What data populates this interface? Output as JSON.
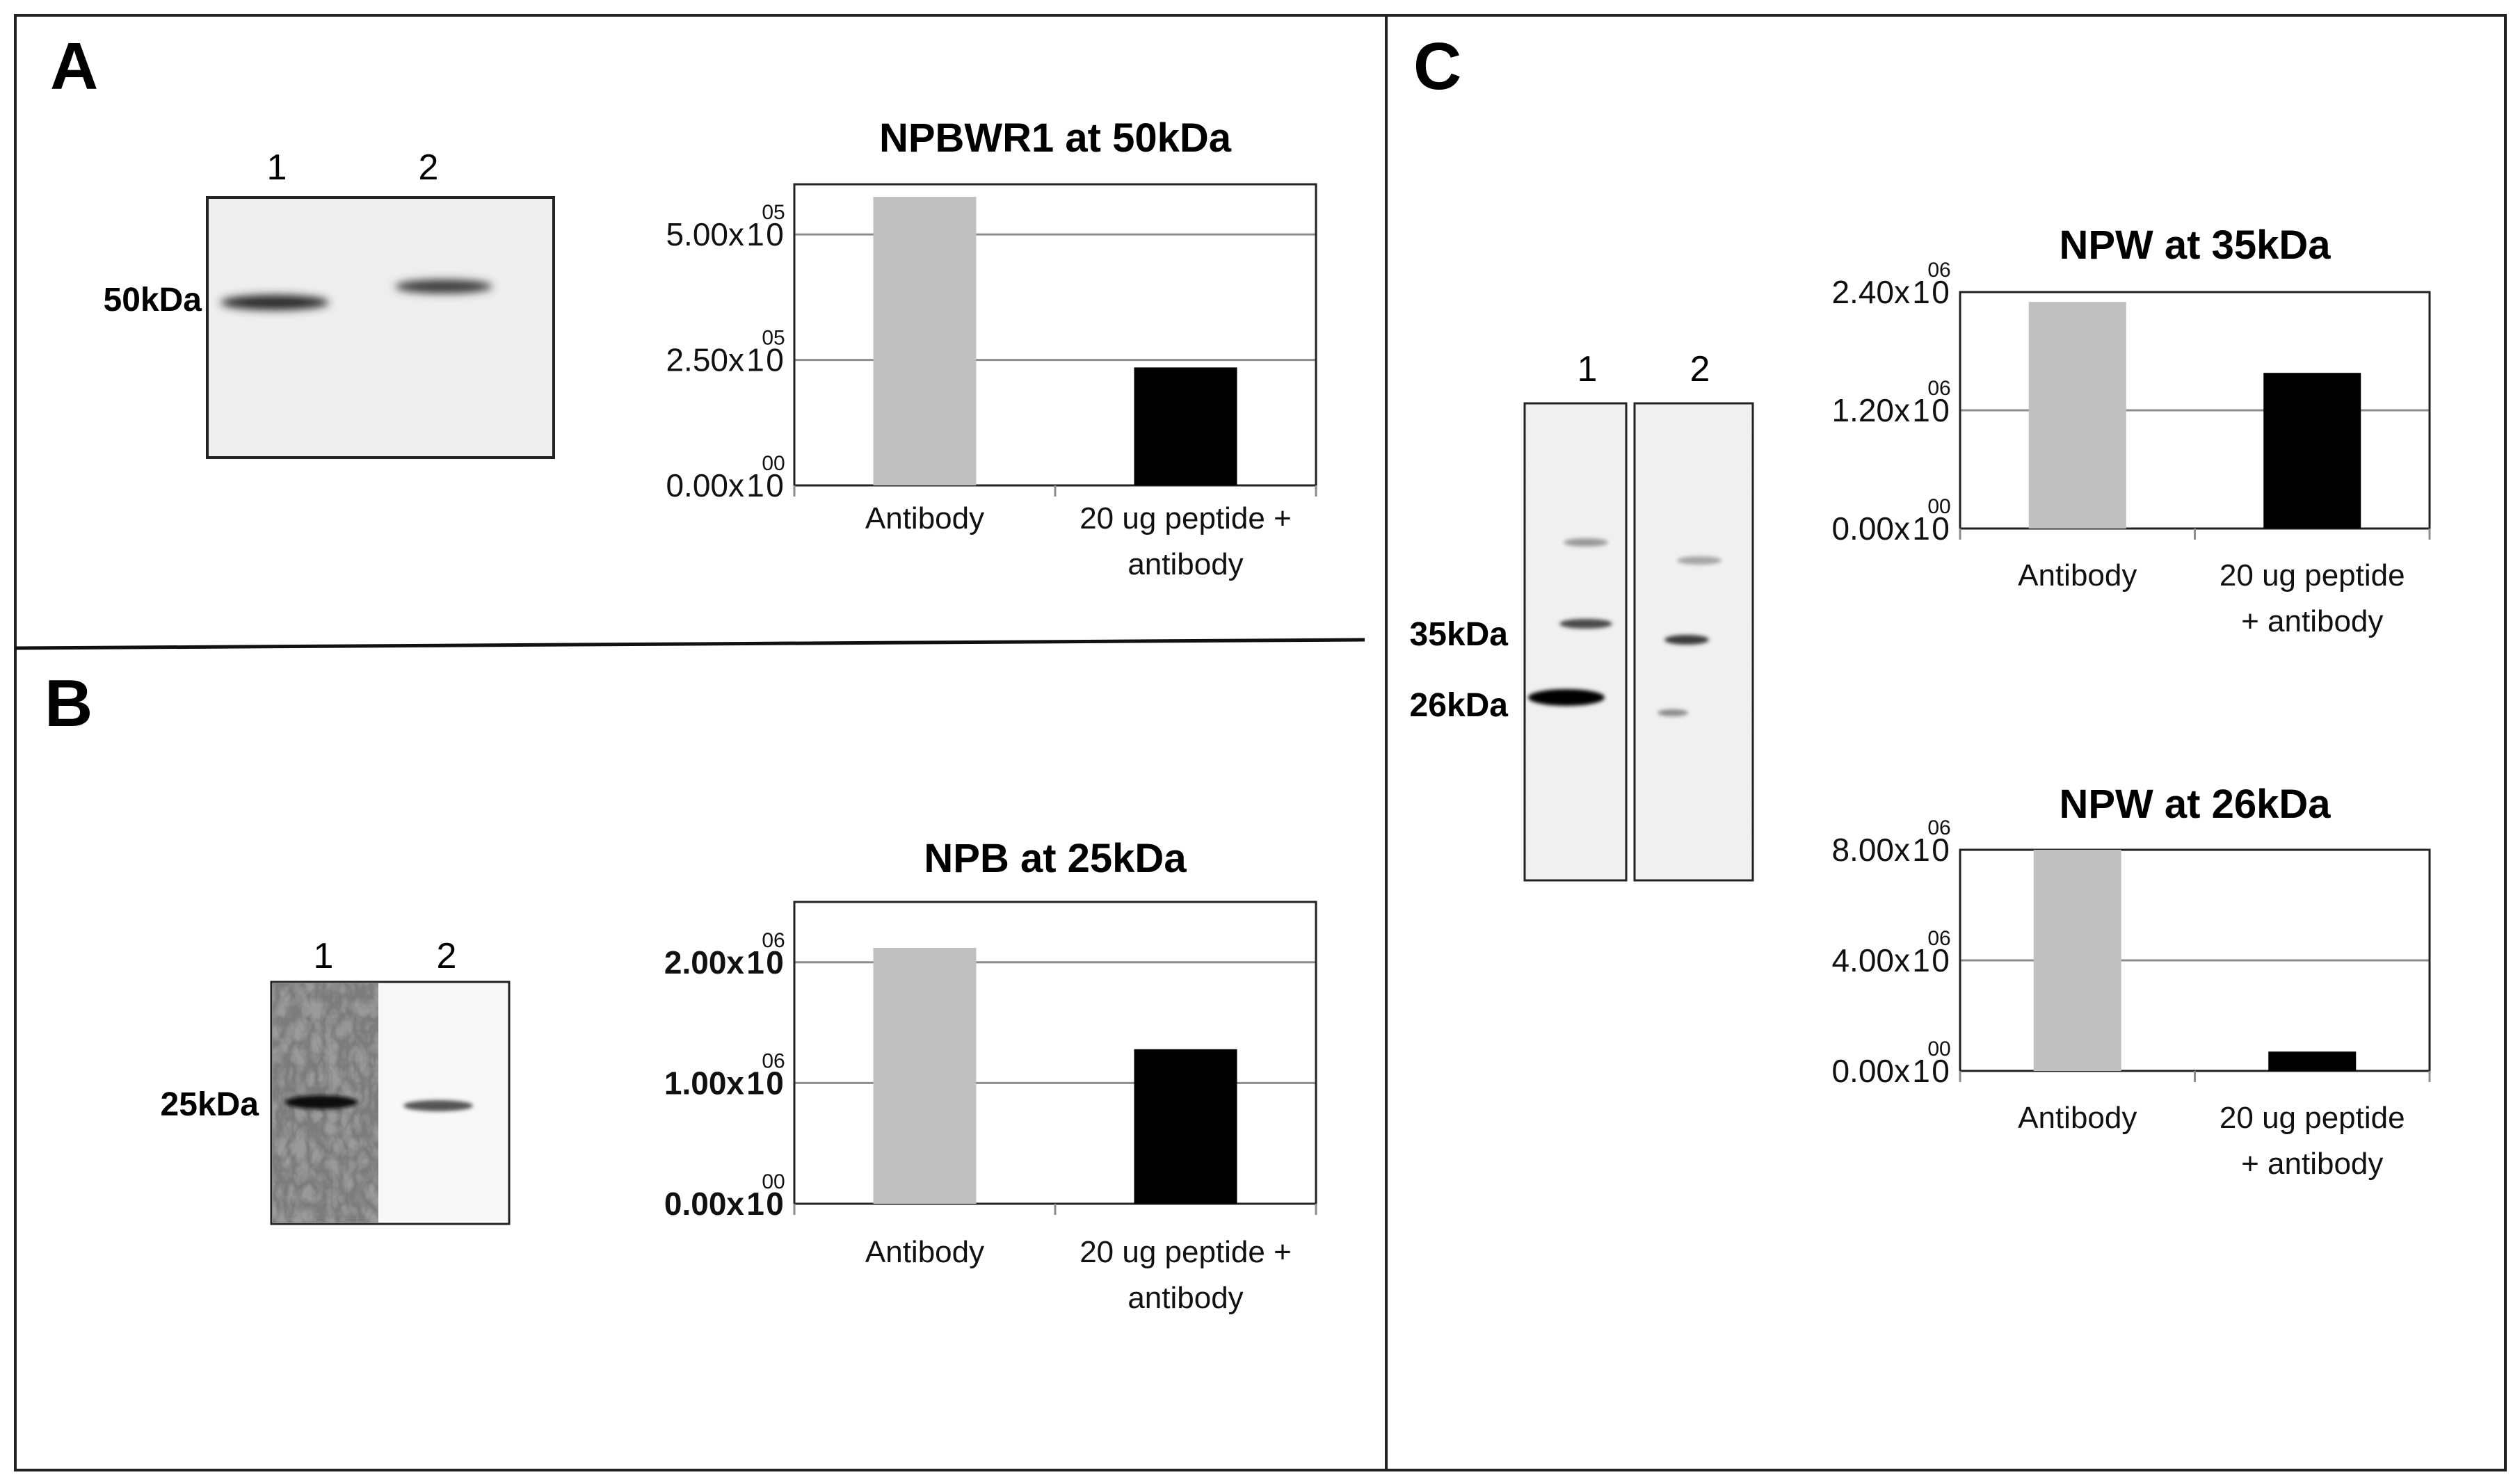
{
  "figure": {
    "panels": [
      {
        "letter": "A",
        "blot": {
          "lanes": [
            "1",
            "2"
          ],
          "markers": [
            "50kDa"
          ]
        },
        "chart_index": 0
      },
      {
        "letter": "B",
        "blot": {
          "lanes": [
            "1",
            "2"
          ],
          "markers": [
            "25kDa"
          ]
        },
        "chart_index": 1
      },
      {
        "letter": "C",
        "blot": {
          "lanes": [
            "1",
            "2"
          ],
          "markers": [
            "35kDa",
            "26kDa"
          ]
        },
        "chart_index": [
          2,
          3
        ]
      }
    ],
    "colors": {
      "antibody": "#c0c0c0",
      "peptide": "#000000",
      "grid": "#8c8c8c",
      "frame": "#222222"
    }
  },
  "chart_data": [
    {
      "type": "bar",
      "title": "NPBWR1 at 50kDa",
      "categories": [
        "Antibody",
        "20 ug peptide + antibody"
      ],
      "category_lines": [
        [
          "Antibody"
        ],
        [
          "20 ug peptide +",
          "antibody"
        ]
      ],
      "values": [
        575000,
        235000
      ],
      "ylim": [
        0,
        600000
      ],
      "yticks": [
        {
          "value": 500000,
          "mantissa": "5.00x",
          "one": "1",
          "zero": "0",
          "exp": "05"
        },
        {
          "value": 250000,
          "mantissa": "2.50x",
          "one": "1",
          "zero": "0",
          "exp": "05"
        },
        {
          "value": 0,
          "mantissa": "0.00x",
          "one": "1",
          "zero": "0",
          "exp": "00"
        }
      ],
      "xlabel": "",
      "ylabel": "",
      "grid": true
    },
    {
      "type": "bar",
      "title": "NPB at 25kDa",
      "categories": [
        "Antibody",
        "20 ug peptide + antibody"
      ],
      "category_lines": [
        [
          "Antibody"
        ],
        [
          "20 ug peptide +",
          "antibody"
        ]
      ],
      "values": [
        2120000,
        1280000
      ],
      "ylim": [
        0,
        2500000
      ],
      "yticks": [
        {
          "value": 2000000,
          "mantissa": "2.00x",
          "one": "1",
          "zero": "0",
          "exp": "06"
        },
        {
          "value": 1000000,
          "mantissa": "1.00x",
          "one": "1",
          "zero": "0",
          "exp": "06"
        },
        {
          "value": 0,
          "mantissa": "0.00x",
          "one": "1",
          "zero": "0",
          "exp": "00"
        }
      ],
      "xlabel": "",
      "ylabel": "",
      "grid": true
    },
    {
      "type": "bar",
      "title": "NPW at 35kDa",
      "categories": [
        "Antibody",
        "20 ug peptide + antibody"
      ],
      "category_lines": [
        [
          "Antibody"
        ],
        [
          "20 ug peptide",
          "+ antibody"
        ]
      ],
      "values": [
        2300000,
        1580000
      ],
      "ylim": [
        0,
        2400000
      ],
      "yticks": [
        {
          "value": 2400000,
          "mantissa": "2.40x",
          "one": "1",
          "zero": "0",
          "exp": "06"
        },
        {
          "value": 1200000,
          "mantissa": "1.20x",
          "one": "1",
          "zero": "0",
          "exp": "06"
        },
        {
          "value": 0,
          "mantissa": "0.00x",
          "one": "1",
          "zero": "0",
          "exp": "00"
        }
      ],
      "xlabel": "",
      "ylabel": "",
      "grid": true
    },
    {
      "type": "bar",
      "title": "NPW at 26kDa",
      "categories": [
        "Antibody",
        "20 ug peptide + antibody"
      ],
      "category_lines": [
        [
          "Antibody"
        ],
        [
          "20 ug peptide",
          "+ antibody"
        ]
      ],
      "values": [
        8000000,
        700000
      ],
      "ylim": [
        0,
        8000000
      ],
      "yticks": [
        {
          "value": 8000000,
          "mantissa": "8.00x",
          "one": "1",
          "zero": "0",
          "exp": "06"
        },
        {
          "value": 4000000,
          "mantissa": "4.00x",
          "one": "1",
          "zero": "0",
          "exp": "06"
        },
        {
          "value": 0,
          "mantissa": "0.00x",
          "one": "1",
          "zero": "0",
          "exp": "00"
        }
      ],
      "xlabel": "",
      "ylabel": "",
      "grid": true
    }
  ]
}
